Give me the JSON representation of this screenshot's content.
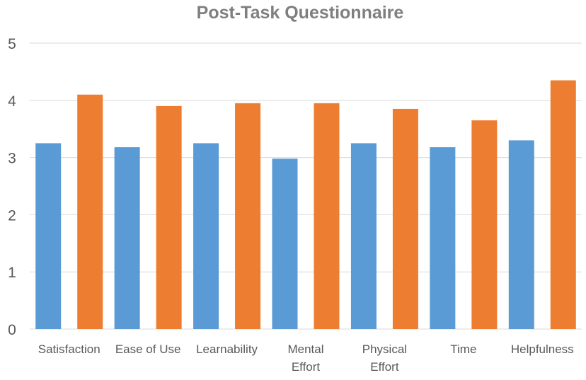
{
  "chart_data": {
    "type": "bar",
    "title": "Post-Task Questionnaire",
    "xlabel": "",
    "ylabel": "",
    "categories": [
      [
        "Satisfaction"
      ],
      [
        "Ease of Use"
      ],
      [
        "Learnability"
      ],
      [
        "Mental",
        "Effort"
      ],
      [
        "Physical",
        "Effort"
      ],
      [
        "Time"
      ],
      [
        "Helpfulness"
      ]
    ],
    "series": [
      {
        "color": "#5b9bd5",
        "values": [
          3.25,
          3.18,
          3.25,
          2.98,
          3.25,
          3.18,
          3.3
        ]
      },
      {
        "color": "#ed7d31",
        "values": [
          4.1,
          3.9,
          3.95,
          3.95,
          3.85,
          3.65,
          4.35
        ]
      }
    ],
    "ylim": [
      0,
      5
    ],
    "yticks": [
      "0",
      "1",
      "2",
      "3",
      "4",
      "5"
    ],
    "grid": true,
    "legend": "none",
    "colors": {
      "gridline": "#d9d9d9",
      "tick_text": "#595959",
      "title_text": "#7f7f7f"
    }
  }
}
